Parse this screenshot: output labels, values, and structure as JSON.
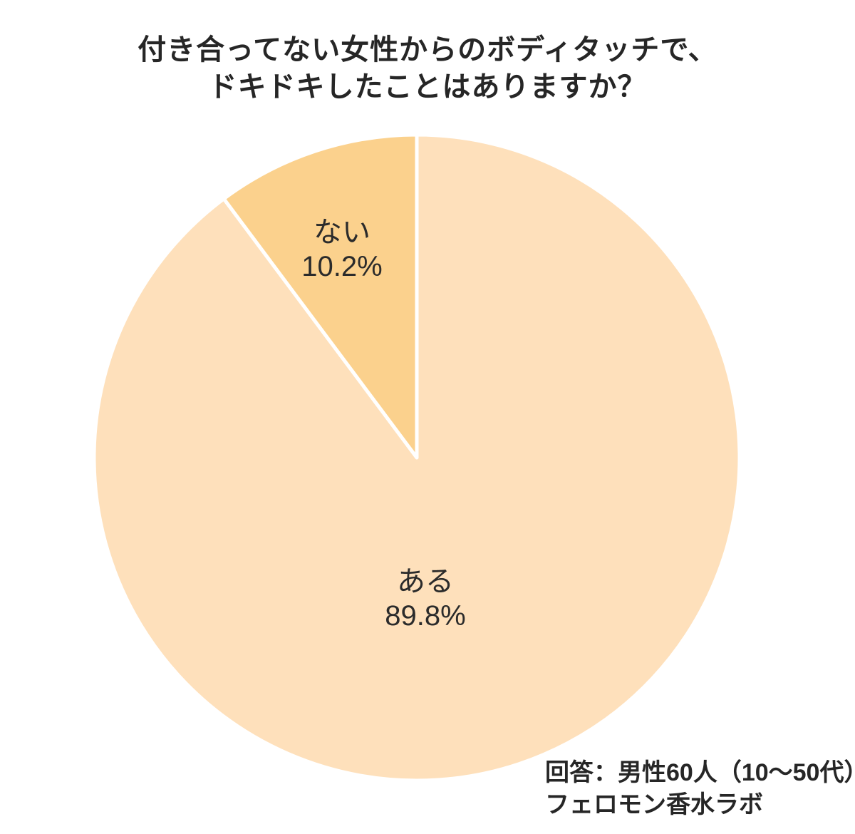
{
  "page": {
    "background_color": "#ffffff",
    "text_color": "#262626"
  },
  "title": {
    "line1": "付き合ってない女性からのボディタッチで、",
    "line2": "ドキドキしたことはありますか？"
  },
  "source": {
    "line1": "回答：男性60人（10～50代）",
    "line2": "フェロモン香水ラボ"
  },
  "chart_data": {
    "type": "pie",
    "title": "付き合ってない女性からのボディタッチで、ドキドキしたことはありますか？",
    "categories": [
      "ある",
      "ない"
    ],
    "values": [
      89.8,
      10.2
    ],
    "unit": "%",
    "slices": [
      {
        "key": "aru",
        "label": "ある",
        "value": 89.8,
        "pct_label": "89.8%",
        "color": "#FEE0BB"
      },
      {
        "key": "nai",
        "label": "ない",
        "value": 10.2,
        "pct_label": "10.2%",
        "color": "#FBD18D"
      }
    ],
    "start_angle_deg": 0,
    "direction": "clockwise",
    "separator_color": "#FFFFFF",
    "legend": "none",
    "labels_inside": true,
    "source_note": "回答：男性60人（10～50代） フェロモン香水ラボ"
  }
}
